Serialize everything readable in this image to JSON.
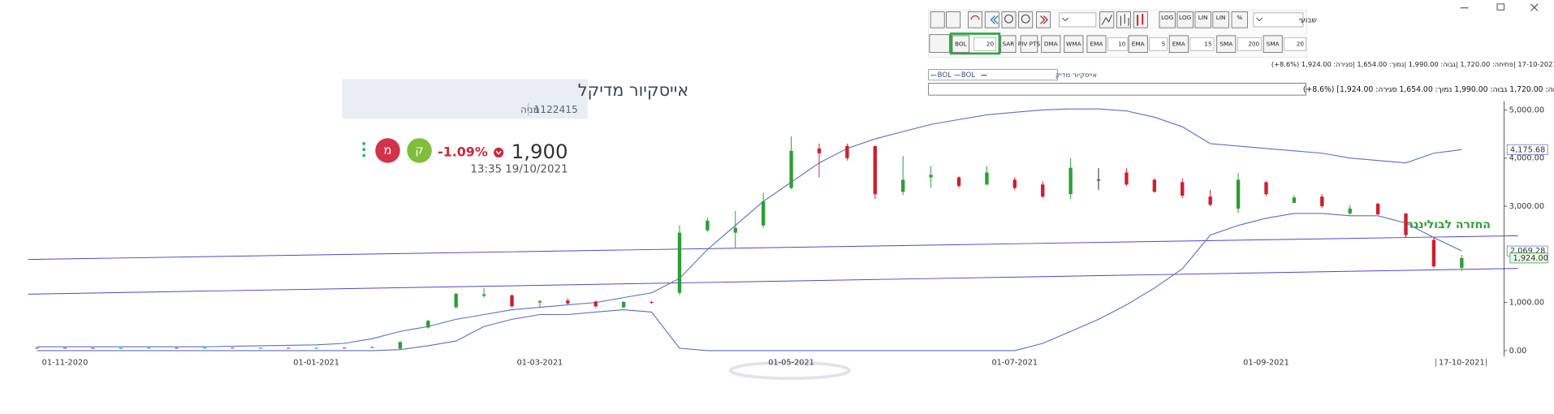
{
  "stock_card": {
    "name": "אייסקיור מדיקל",
    "id": "1122415",
    "kind": "מניה",
    "price": "1,900",
    "change": "-1.09%",
    "time": "13:35 19/10/2021",
    "buttons": [
      "ק",
      "מ"
    ]
  },
  "toolbar": {
    "row1": [
      "LOG",
      "LOG",
      "LIN",
      "LIN",
      "%"
    ],
    "period": "שבועי",
    "row2": [
      "BOL",
      "20",
      "SAR",
      "PIV PTS",
      "DMA",
      "WMA",
      "EMA",
      "10",
      "EMA",
      "5",
      "EMA",
      "15",
      "SMA",
      "200",
      "SMA",
      "20"
    ]
  },
  "info": {
    "line": "תאריך: 17-10-2021 |פתיחה: 1,720.00 |גבוה: 1,990.00 |נמוך: 1,654.00 |סגירה: 1,924.00 (8.6%+)",
    "box": "אייסקיור מדיק [פתיחה: 1,720.00  גבוה: 1,990.00  נמוך: 1,654.00  סגירה: 1,924.00] (8.6%+)"
  },
  "chart_data": {
    "type": "candlestick",
    "annotation": "החזרה לבולינגר",
    "categories": [
      null,
      "01-11-2020",
      null,
      null,
      null,
      null,
      null,
      null,
      null,
      null,
      "01-01-2021",
      null,
      null,
      null,
      null,
      null,
      null,
      null,
      "01-03-2021",
      null,
      null,
      null,
      null,
      null,
      null,
      null,
      null,
      "01-05-2021",
      null,
      null,
      null,
      null,
      null,
      null,
      null,
      "01-07-2021",
      null,
      null,
      null,
      null,
      null,
      null,
      null,
      null,
      "01-09-2021",
      null,
      null,
      null,
      null,
      null,
      null,
      "17-10-2021"
    ],
    "ylim": [
      0,
      5000
    ],
    "yticks": [
      {
        "value": 0,
        "label": "0.00"
      },
      {
        "value": 1000,
        "label": "1,000.00"
      },
      {
        "value": 3000,
        "label": "3,000.00"
      },
      {
        "value": 4000,
        "label": "4,000.00"
      },
      {
        "value": 5000,
        "label": "5,000.00"
      }
    ],
    "series": [
      {
        "name": "אייסקיור מדיק",
        "type": "candlestick",
        "up_color": "#2e9e35",
        "down_color": "#cc2030",
        "flat_color": "#222222",
        "open": [
          60,
          58,
          56,
          52,
          54,
          58,
          56,
          60,
          55,
          58,
          52,
          60,
          55,
          40,
          480,
          900,
          1140,
          1150,
          1000,
          1040,
          1020,
          900,
          1010,
          1200,
          2500,
          2450,
          2600,
          3380,
          4200,
          4250,
          4250,
          3300,
          3600,
          3600,
          3450,
          3550,
          3450,
          3250,
          3550,
          3700,
          3550,
          3500,
          3200,
          2950,
          3500,
          3070,
          3200,
          2850,
          3050,
          2850,
          2300,
          1720
        ],
        "high": [
          65,
          62,
          60,
          60,
          62,
          62,
          64,
          62,
          62,
          60,
          62,
          64,
          90,
          190,
          640,
          1200,
          1300,
          1160,
          1050,
          1080,
          1030,
          1030,
          1030,
          2600,
          2760,
          2900,
          3280,
          4450,
          4300,
          4300,
          4250,
          4040,
          3830,
          3620,
          3830,
          3600,
          3520,
          4000,
          3790,
          3790,
          3580,
          3580,
          3340,
          3690,
          3520,
          3230,
          3250,
          3030,
          3070,
          2850,
          2350,
          1990
        ],
        "low": [
          50,
          50,
          48,
          48,
          50,
          50,
          52,
          50,
          40,
          48,
          48,
          50,
          50,
          20,
          460,
          880,
          1100,
          900,
          900,
          960,
          900,
          880,
          980,
          1150,
          2470,
          2140,
          2550,
          3350,
          3600,
          3950,
          3150,
          3230,
          3380,
          3380,
          3440,
          3340,
          3170,
          3150,
          3340,
          3420,
          3280,
          3170,
          3000,
          2860,
          3210,
          3070,
          2960,
          2820,
          2820,
          2350,
          1720,
          1654
        ],
        "close": [
          55,
          54,
          52,
          55,
          58,
          55,
          60,
          55,
          58,
          52,
          58,
          54,
          70,
          180,
          620,
          1180,
          1170,
          920,
          1030,
          980,
          920,
          1010,
          990,
          2450,
          2700,
          2550,
          3100,
          4150,
          4100,
          4000,
          3250,
          3550,
          3650,
          3420,
          3700,
          3380,
          3200,
          3800,
          3550,
          3450,
          3300,
          3220,
          3030,
          3550,
          3250,
          3180,
          3000,
          2950,
          2830,
          2400,
          1750,
          1924
        ]
      },
      {
        "name": "BOL",
        "type": "line",
        "color": "#5a6fc0",
        "end_label": "4,175.68",
        "values": [
          80,
          80,
          80,
          80,
          80,
          80,
          80,
          90,
          100,
          110,
          120,
          150,
          250,
          400,
          500,
          650,
          750,
          850,
          900,
          950,
          1000,
          1100,
          1200,
          1500,
          2100,
          2600,
          3100,
          3500,
          3900,
          4200,
          4400,
          4550,
          4700,
          4800,
          4900,
          4950,
          5000,
          5020,
          5020,
          4980,
          4850,
          4650,
          4300,
          4250,
          4200,
          4150,
          4100,
          4000,
          3950,
          3900,
          4100,
          4175.68
        ]
      },
      {
        "name": "BOL",
        "type": "line",
        "color": "#5a6fc0",
        "end_label": "2,069.28",
        "values": [
          0,
          0,
          0,
          0,
          0,
          0,
          0,
          0,
          0,
          0,
          0,
          0,
          0,
          20,
          100,
          200,
          500,
          650,
          750,
          750,
          800,
          850,
          800,
          50,
          0,
          0,
          0,
          0,
          0,
          0,
          0,
          0,
          0,
          0,
          0,
          0,
          150,
          400,
          650,
          950,
          1300,
          1700,
          2400,
          2600,
          2750,
          2850,
          2850,
          2800,
          2800,
          2650,
          2350,
          2069.28
        ]
      }
    ],
    "close_label": "1,924.00",
    "trendlines": [
      {
        "color": "#4a4ac8",
        "values": [
          1893,
          2387
        ]
      },
      {
        "color": "#4a4ac8",
        "values": [
          1173,
          1708
        ]
      }
    ]
  }
}
